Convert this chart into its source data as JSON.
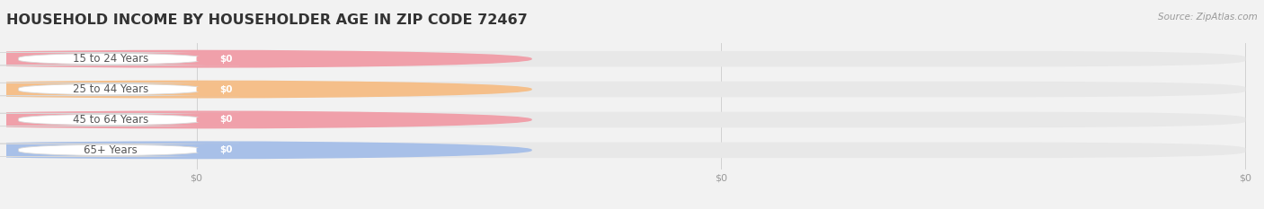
{
  "title": "HOUSEHOLD INCOME BY HOUSEHOLDER AGE IN ZIP CODE 72467",
  "source": "Source: ZipAtlas.com",
  "categories": [
    "15 to 24 Years",
    "25 to 44 Years",
    "45 to 64 Years",
    "65+ Years"
  ],
  "values": [
    0,
    0,
    0,
    0
  ],
  "max_value": 1,
  "bar_colors": [
    "#f0a0aa",
    "#f5bf8a",
    "#f0a0aa",
    "#a8c0e8"
  ],
  "bg_color": "#f2f2f2",
  "bar_bg_color": "#e8e8e8",
  "title_color": "#333333",
  "label_text_color": "#555555",
  "value_text_color": "#ffffff",
  "source_color": "#999999",
  "title_fontsize": 11.5,
  "label_fontsize": 8.5,
  "value_fontsize": 7.5,
  "source_fontsize": 7.5,
  "xtick_labels": [
    "$0",
    "$0",
    "$0"
  ],
  "xtick_positions": [
    0.0,
    0.5,
    1.0
  ]
}
